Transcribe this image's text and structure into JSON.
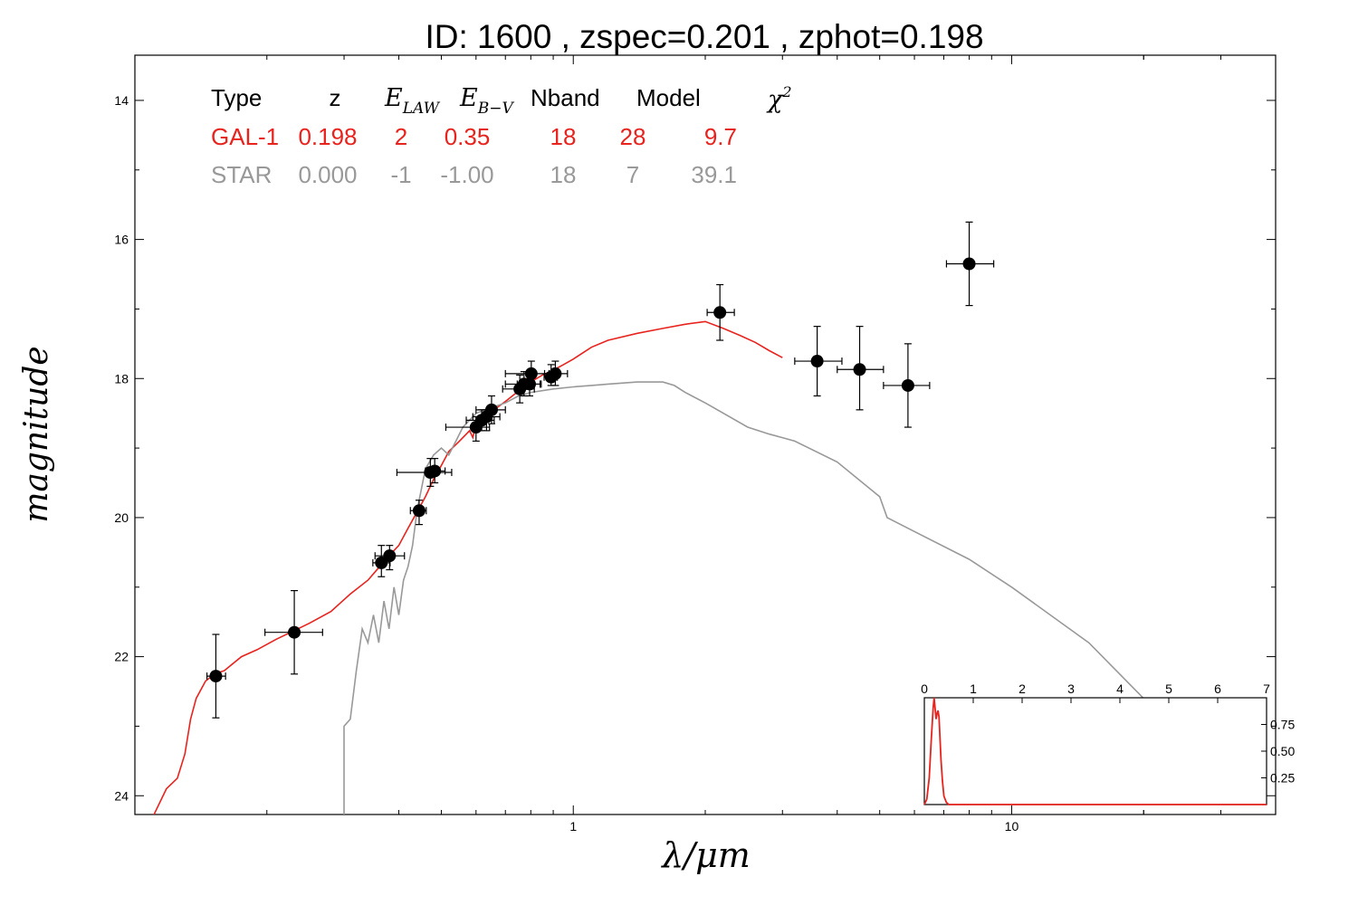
{
  "chart_data": {
    "type": "scatter",
    "title": "ID:  1600  , zspec=0.201 , zphot=0.198",
    "xlabel": "λ/μm",
    "ylabel": "magnitude",
    "x_scale": "log",
    "y_inverted": true,
    "xlim": [
      0.1,
      40
    ],
    "ylim": [
      24.27,
      13.35
    ],
    "x_ticks": [
      {
        "value": 1,
        "label": "1"
      },
      {
        "value": 10,
        "label": "10"
      }
    ],
    "y_ticks": [
      {
        "value": 14,
        "label": "14"
      },
      {
        "value": 16,
        "label": "16"
      },
      {
        "value": 18,
        "label": "18"
      },
      {
        "value": 20,
        "label": "20"
      },
      {
        "value": 22,
        "label": "22"
      },
      {
        "value": 24,
        "label": "24"
      }
    ],
    "legend": {
      "placement": "top-left",
      "headers": {
        "type": "Type",
        "z": "z",
        "elaw": "E",
        "elaw_sub": "LAW",
        "ebv": "E",
        "ebv_sub": "B−V",
        "nband": "Nband",
        "model": "Model",
        "chi": "χ",
        "chi_sup": "2"
      },
      "rows": [
        {
          "type": "GAL-1",
          "z": "0.198",
          "elaw": "2",
          "ebv": "0.35",
          "nband": "18",
          "model": "28",
          "chi2": "9.7",
          "color": "#e8231e"
        },
        {
          "type": "STAR",
          "z": "0.000",
          "elaw": "-1",
          "ebv": "-1.00",
          "nband": "18",
          "model": "7",
          "chi2": "39.1",
          "color": "#999999"
        }
      ]
    },
    "points": [
      {
        "x": 0.153,
        "y": 22.28,
        "xerr": [
          0.146,
          0.161
        ],
        "yerr": [
          21.68,
          22.88
        ]
      },
      {
        "x": 0.231,
        "y": 21.65,
        "xerr": [
          0.198,
          0.268
        ],
        "yerr": [
          21.05,
          22.25
        ]
      },
      {
        "x": 0.365,
        "y": 20.65,
        "xerr": [
          0.349,
          0.382
        ],
        "yerr": [
          20.4,
          20.85
        ]
      },
      {
        "x": 0.381,
        "y": 20.55,
        "xerr": [
          0.353,
          0.412
        ],
        "yerr": [
          20.4,
          20.75
        ]
      },
      {
        "x": 0.445,
        "y": 19.9,
        "xerr": [
          0.425,
          0.462
        ],
        "yerr": [
          19.75,
          20.1
        ]
      },
      {
        "x": 0.472,
        "y": 19.35,
        "xerr": [
          0.396,
          0.528
        ],
        "yerr": [
          19.15,
          19.55
        ]
      },
      {
        "x": 0.483,
        "y": 19.33,
        "xerr": [
          0.46,
          0.51
        ],
        "yerr": [
          19.15,
          19.5
        ]
      },
      {
        "x": 0.6,
        "y": 18.7,
        "xerr": [
          0.512,
          0.644
        ],
        "yerr": [
          18.55,
          18.9
        ]
      },
      {
        "x": 0.618,
        "y": 18.6,
        "xerr": [
          0.57,
          0.66
        ],
        "yerr": [
          18.45,
          18.75
        ]
      },
      {
        "x": 0.634,
        "y": 18.55,
        "xerr": [
          0.59,
          0.68
        ],
        "yerr": [
          18.45,
          18.75
        ]
      },
      {
        "x": 0.651,
        "y": 18.45,
        "xerr": [
          0.6,
          0.7
        ],
        "yerr": [
          18.25,
          18.65
        ]
      },
      {
        "x": 0.755,
        "y": 18.15,
        "xerr": [
          0.69,
          0.815
        ],
        "yerr": [
          17.95,
          18.35
        ]
      },
      {
        "x": 0.772,
        "y": 18.08,
        "xerr": [
          0.7,
          0.84
        ],
        "yerr": [
          17.9,
          18.25
        ]
      },
      {
        "x": 0.795,
        "y": 18.08,
        "xerr": [
          0.745,
          0.845
        ],
        "yerr": [
          17.9,
          18.25
        ]
      },
      {
        "x": 0.802,
        "y": 17.93,
        "xerr": [
          0.7,
          0.88
        ],
        "yerr": [
          17.75,
          18.1
        ]
      },
      {
        "x": 0.89,
        "y": 17.98,
        "xerr": [
          0.858,
          0.92
        ],
        "yerr": [
          17.8,
          18.1
        ]
      },
      {
        "x": 0.91,
        "y": 17.93,
        "xerr": [
          0.86,
          0.97
        ],
        "yerr": [
          17.75,
          18.1
        ]
      },
      {
        "x": 2.16,
        "y": 17.05,
        "xerr": [
          2.02,
          2.33
        ],
        "yerr": [
          16.65,
          17.45
        ]
      },
      {
        "x": 3.6,
        "y": 17.75,
        "xerr": [
          3.2,
          4.1
        ],
        "yerr": [
          17.25,
          18.25
        ]
      },
      {
        "x": 4.5,
        "y": 17.87,
        "xerr": [
          4.0,
          5.1
        ],
        "yerr": [
          17.25,
          18.45
        ]
      },
      {
        "x": 5.8,
        "y": 18.1,
        "xerr": [
          5.1,
          6.5
        ],
        "yerr": [
          17.5,
          18.7
        ]
      },
      {
        "x": 8.0,
        "y": 16.35,
        "xerr": [
          7.1,
          9.1
        ],
        "yerr": [
          15.75,
          16.95
        ]
      }
    ],
    "series": [
      {
        "name": "GAL-1",
        "color": "#e8231e",
        "x": [
          0.11,
          0.118,
          0.125,
          0.13,
          0.134,
          0.138,
          0.145,
          0.152,
          0.16,
          0.175,
          0.19,
          0.21,
          0.23,
          0.25,
          0.28,
          0.31,
          0.34,
          0.36,
          0.38,
          0.4,
          0.42,
          0.44,
          0.46,
          0.48,
          0.5,
          0.52,
          0.55,
          0.58,
          0.59,
          0.6,
          0.62,
          0.65,
          0.7,
          0.75,
          0.8,
          0.85,
          0.9,
          0.95,
          1.0,
          1.1,
          1.2,
          1.4,
          1.6,
          1.8,
          2.0,
          2.2,
          2.4,
          2.6,
          2.8,
          3.0
        ],
        "y": [
          24.3,
          23.9,
          23.75,
          23.4,
          22.9,
          22.6,
          22.35,
          22.25,
          22.2,
          22.0,
          21.9,
          21.75,
          21.63,
          21.52,
          21.35,
          21.1,
          20.9,
          20.72,
          20.55,
          20.4,
          20.15,
          19.92,
          19.7,
          19.45,
          19.25,
          19.05,
          18.9,
          18.75,
          18.85,
          18.65,
          18.55,
          18.48,
          18.33,
          18.18,
          18.05,
          17.95,
          17.88,
          17.8,
          17.72,
          17.55,
          17.45,
          17.35,
          17.28,
          17.22,
          17.18,
          17.28,
          17.38,
          17.48,
          17.6,
          17.7
        ]
      },
      {
        "name": "STAR",
        "color": "#999999",
        "x": [
          0.3,
          0.3,
          0.31,
          0.32,
          0.33,
          0.34,
          0.35,
          0.36,
          0.37,
          0.38,
          0.39,
          0.4,
          0.41,
          0.42,
          0.43,
          0.44,
          0.45,
          0.46,
          0.48,
          0.5,
          0.52,
          0.54,
          0.56,
          0.6,
          0.65,
          0.7,
          0.75,
          0.8,
          0.9,
          1.0,
          1.1,
          1.2,
          1.4,
          1.6,
          1.7,
          1.8,
          2.0,
          2.5,
          2.8,
          3.0,
          3.2,
          4.0,
          5.0,
          5.2,
          6.0,
          8.0,
          10.0,
          15.0,
          20.0,
          30.0,
          34.0
        ],
        "y": [
          24.3,
          23.0,
          22.9,
          22.2,
          21.6,
          21.8,
          21.4,
          21.8,
          21.2,
          21.6,
          21.0,
          21.4,
          20.9,
          20.7,
          20.4,
          19.9,
          19.6,
          19.3,
          19.1,
          19.0,
          19.1,
          18.9,
          18.7,
          18.5,
          18.42,
          18.35,
          18.25,
          18.2,
          18.15,
          18.12,
          18.1,
          18.08,
          18.05,
          18.05,
          18.1,
          18.2,
          18.35,
          18.7,
          18.8,
          18.85,
          18.9,
          19.2,
          19.7,
          20.0,
          20.2,
          20.6,
          21.0,
          21.8,
          22.6,
          23.7,
          24.1
        ]
      }
    ],
    "inset": {
      "type": "line",
      "placement": "bottom-right",
      "color": "#e8231e",
      "xlim": [
        0,
        7
      ],
      "ylim": [
        0,
        1
      ],
      "x_ticks": [
        {
          "value": 0,
          "label": "0"
        },
        {
          "value": 1,
          "label": "1"
        },
        {
          "value": 2,
          "label": "2"
        },
        {
          "value": 3,
          "label": "3"
        },
        {
          "value": 4,
          "label": "4"
        },
        {
          "value": 5,
          "label": "5"
        },
        {
          "value": 6,
          "label": "6"
        },
        {
          "value": 7,
          "label": "7"
        }
      ],
      "y_ticks": [
        {
          "value": 0.25,
          "label": "0.25"
        },
        {
          "value": 0.5,
          "label": "0.50"
        },
        {
          "value": 0.75,
          "label": "0.75"
        }
      ],
      "x": [
        0.0,
        0.05,
        0.1,
        0.14,
        0.18,
        0.2,
        0.22,
        0.24,
        0.26,
        0.28,
        0.3,
        0.32,
        0.34,
        0.37,
        0.4,
        0.45,
        0.5,
        0.55,
        0.6,
        7.0
      ],
      "y": [
        0.0,
        0.05,
        0.25,
        0.6,
        0.9,
        1.0,
        0.9,
        0.8,
        0.85,
        0.88,
        0.82,
        0.62,
        0.42,
        0.22,
        0.08,
        0.02,
        0.0,
        0.0,
        0.0,
        0.0
      ]
    }
  }
}
